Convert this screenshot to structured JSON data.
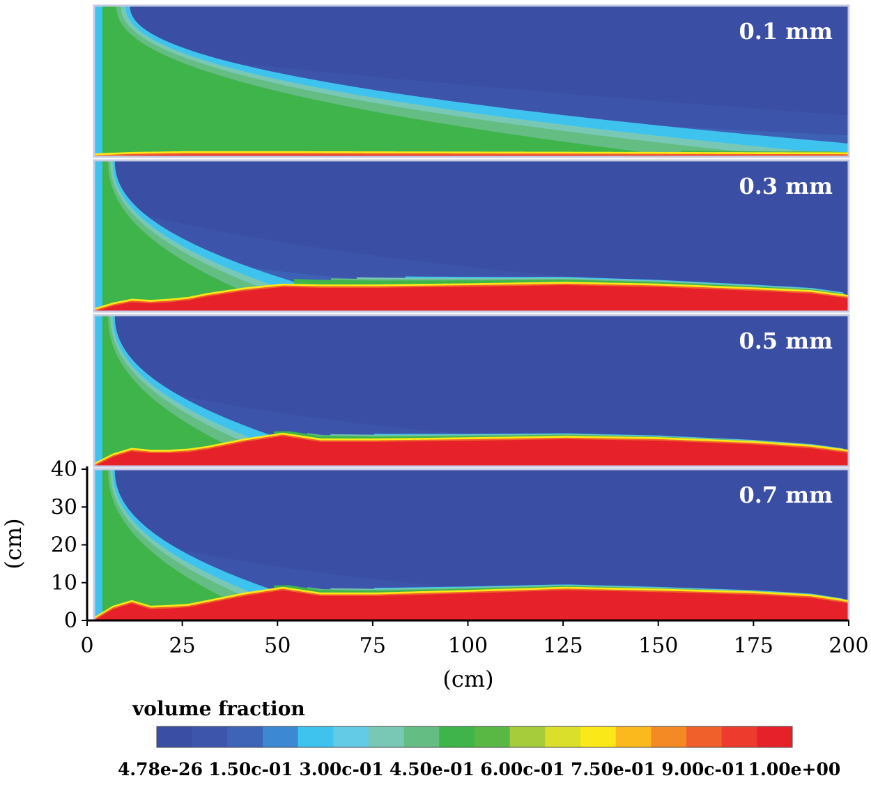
{
  "chart_data": {
    "type": "heatmap",
    "title": "",
    "xlabel": "(cm)",
    "ylabel": "(cm)",
    "xlim": [
      0,
      200
    ],
    "ylim": [
      0,
      40
    ],
    "xticks": [
      "0",
      "25",
      "50",
      "75",
      "100",
      "125",
      "150",
      "175",
      "200"
    ],
    "yticks": [
      "0",
      "10",
      "20",
      "30",
      "40"
    ],
    "grid": false,
    "panels": [
      {
        "label": "0.1 mm",
        "bed_profile": {
          "x": [
            0,
            5,
            10,
            25,
            50,
            100,
            150,
            200
          ],
          "height": [
            0,
            0.2,
            0.4,
            0.6,
            0.6,
            0.5,
            0.4,
            0.3
          ]
        },
        "plume": {
          "width_at_top": 8,
          "decay_length": 85,
          "tail_height": 8
        },
        "background_value": 0.0
      },
      {
        "label": "0.3 mm",
        "bed_profile": {
          "x": [
            0,
            5,
            10,
            15,
            20,
            25,
            30,
            40,
            50,
            60,
            75,
            100,
            125,
            150,
            175,
            190,
            200
          ],
          "height": [
            0,
            1.5,
            2.5,
            2.2,
            2.5,
            3.0,
            4.0,
            5.5,
            6.5,
            6.3,
            6.3,
            6.6,
            7.0,
            6.5,
            5.5,
            4.8,
            3.5
          ]
        },
        "plume": {
          "width_at_top": 4,
          "decay_length": 28,
          "tail_height": 8
        },
        "background_value": 0.0
      },
      {
        "label": "0.5 mm",
        "bed_profile": {
          "x": [
            0,
            5,
            10,
            15,
            20,
            25,
            30,
            40,
            50,
            60,
            75,
            100,
            125,
            150,
            175,
            190,
            200
          ],
          "height": [
            0,
            2.5,
            4.0,
            3.5,
            3.5,
            3.8,
            4.5,
            6.5,
            8.0,
            6.5,
            6.5,
            6.8,
            7.2,
            6.8,
            5.8,
            4.8,
            3.5
          ]
        },
        "plume": {
          "width_at_top": 4,
          "decay_length": 25,
          "tail_height": 5
        },
        "background_value": 0.0
      },
      {
        "label": "0.7 mm",
        "bed_profile": {
          "x": [
            0,
            5,
            10,
            15,
            20,
            25,
            30,
            40,
            50,
            60,
            75,
            100,
            125,
            150,
            175,
            190,
            200
          ],
          "height": [
            0,
            3.0,
            4.5,
            3.0,
            3.2,
            3.5,
            4.5,
            6.5,
            8.0,
            6.5,
            6.5,
            7.2,
            8.0,
            7.5,
            6.8,
            6.0,
            4.5
          ]
        },
        "plume": {
          "width_at_top": 4,
          "decay_length": 25,
          "tail_height": 5
        },
        "background_value": 0.0
      }
    ],
    "colorbar": {
      "title": "volume fraction",
      "labels": [
        "4.78e-26",
        "1.50c-01",
        "3.00c-01",
        "4.50e-01",
        "6.00c-01",
        "7.50e-01",
        "9.00c-01",
        "1.00e+00"
      ],
      "min": 0,
      "max": 1,
      "colors": [
        "#3a4ea3",
        "#3d56ab",
        "#3d64b7",
        "#3c88d2",
        "#3ec3ef",
        "#63cbe6",
        "#79c8b6",
        "#64be83",
        "#3eb44a",
        "#58b843",
        "#a6cc3b",
        "#d9df2a",
        "#fbe819",
        "#fbb91d",
        "#f48a24",
        "#f0602a",
        "#ed3b2d",
        "#e6212a"
      ]
    }
  }
}
